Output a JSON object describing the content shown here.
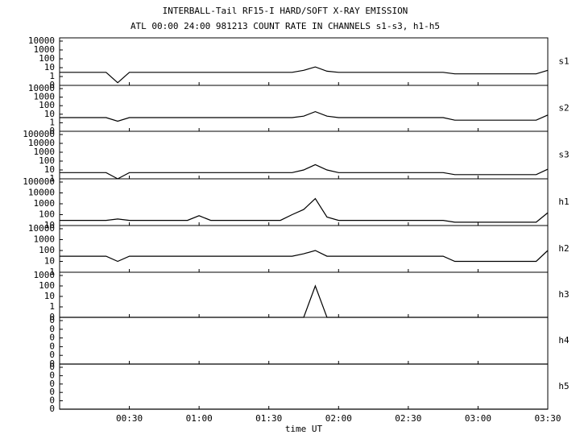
{
  "header": {
    "title": "INTERBALL-Tail RF15-I HARD/SOFT X-RAY EMISSION",
    "subtitle": "ATL 00:00 24:00 981213  COUNT RATE IN CHANNELS s1-s3, h1-h5"
  },
  "x_axis": {
    "label": "time UT",
    "xlim": [
      0,
      210
    ],
    "xticks": [
      {
        "value": 30,
        "label": "00:30"
      },
      {
        "value": 60,
        "label": "01:00"
      },
      {
        "value": 90,
        "label": "01:30"
      },
      {
        "value": 120,
        "label": "02:00"
      },
      {
        "value": 150,
        "label": "02:30"
      },
      {
        "value": 180,
        "label": "03:00"
      },
      {
        "value": 210,
        "label": "03:30"
      }
    ],
    "x": [
      0,
      5,
      10,
      15,
      20,
      25,
      30,
      35,
      40,
      45,
      50,
      55,
      60,
      65,
      70,
      75,
      80,
      85,
      90,
      95,
      100,
      105,
      110,
      115,
      120,
      125,
      130,
      135,
      140,
      145,
      150,
      155,
      160,
      165,
      170,
      175,
      180,
      185,
      190,
      195,
      200,
      205,
      210
    ]
  },
  "chart_data": [
    {
      "type": "line",
      "channel": "s1",
      "log": true,
      "ylim": [
        0.1,
        10000
      ],
      "yticks": [
        10000,
        1000,
        100,
        10,
        1,
        {
          "value": 0.1,
          "label": "0"
        }
      ],
      "series": [
        {
          "color": "#000000",
          "values": [
            3,
            3,
            3,
            3,
            3,
            0.2,
            3,
            3,
            3,
            3,
            3,
            3,
            3,
            3,
            3,
            3,
            3,
            3,
            3,
            3,
            3,
            5,
            12,
            4,
            3,
            3,
            3,
            3,
            3,
            3,
            3,
            3,
            3,
            3,
            2,
            2,
            2,
            2,
            2,
            2,
            2,
            2,
            5
          ]
        }
      ]
    },
    {
      "type": "line",
      "channel": "s2",
      "log": true,
      "ylim": [
        0.1,
        10000
      ],
      "yticks": [
        10000,
        1000,
        100,
        10,
        1,
        {
          "value": 0.1,
          "label": "0"
        }
      ],
      "series": [
        {
          "color": "#000000",
          "values": [
            4,
            4,
            4,
            4,
            4,
            1.5,
            4,
            4,
            4,
            4,
            4,
            4,
            4,
            4,
            4,
            4,
            4,
            4,
            4,
            4,
            4,
            6,
            20,
            6,
            4,
            4,
            4,
            4,
            4,
            4,
            4,
            4,
            4,
            4,
            2,
            2,
            2,
            2,
            2,
            2,
            2,
            2,
            8
          ]
        }
      ]
    },
    {
      "type": "line",
      "channel": "s3",
      "log": true,
      "ylim": [
        1,
        100000
      ],
      "yticks": [
        100000,
        10000,
        1000,
        100,
        10,
        1
      ],
      "series": [
        {
          "color": "#000000",
          "values": [
            5,
            5,
            5,
            5,
            5,
            1,
            5,
            5,
            5,
            5,
            5,
            5,
            5,
            5,
            5,
            5,
            5,
            5,
            5,
            5,
            5,
            10,
            40,
            10,
            5,
            5,
            5,
            5,
            5,
            5,
            5,
            5,
            5,
            5,
            3,
            3,
            3,
            3,
            3,
            3,
            3,
            3,
            12
          ]
        }
      ]
    },
    {
      "type": "line",
      "channel": "h1",
      "log": true,
      "ylim": [
        10,
        100000
      ],
      "yticks": [
        100000,
        10000,
        1000,
        100,
        10
      ],
      "series": [
        {
          "color": "#000000",
          "values": [
            30,
            30,
            30,
            30,
            30,
            40,
            30,
            30,
            30,
            30,
            30,
            30,
            80,
            30,
            30,
            30,
            30,
            30,
            30,
            30,
            100,
            300,
            3000,
            60,
            30,
            30,
            30,
            30,
            30,
            30,
            30,
            30,
            30,
            30,
            20,
            20,
            20,
            20,
            20,
            20,
            20,
            20,
            150
          ]
        }
      ]
    },
    {
      "type": "line",
      "channel": "h2",
      "log": true,
      "ylim": [
        1,
        10000
      ],
      "yticks": [
        10000,
        1000,
        100,
        10,
        1
      ],
      "series": [
        {
          "color": "#000000",
          "values": [
            30,
            30,
            30,
            30,
            30,
            10,
            30,
            30,
            30,
            30,
            30,
            30,
            30,
            30,
            30,
            30,
            30,
            30,
            30,
            30,
            30,
            50,
            100,
            30,
            30,
            30,
            30,
            30,
            30,
            30,
            30,
            30,
            30,
            30,
            10,
            10,
            10,
            10,
            10,
            10,
            10,
            10,
            100
          ]
        }
      ]
    },
    {
      "type": "line",
      "channel": "h3",
      "log": true,
      "ylim": [
        0.1,
        1000
      ],
      "yticks": [
        1000,
        100,
        10,
        1,
        {
          "value": 0.1,
          "label": "0"
        }
      ],
      "series": [
        {
          "color": "#000000",
          "values": [
            0.1,
            0.1,
            0.1,
            0.1,
            0.1,
            0.1,
            0.1,
            0.1,
            0.1,
            0.1,
            0.1,
            0.1,
            0.1,
            0.1,
            0.1,
            0.1,
            0.1,
            0.1,
            0.1,
            0.1,
            0.1,
            0.1,
            100,
            0.1,
            0.1,
            0.1,
            0.1,
            0.1,
            0.1,
            0.1,
            0.1,
            0.1,
            0.1,
            0.1,
            0.1,
            0.1,
            0.1,
            0.1,
            0.1,
            0.1,
            0.1,
            0.1,
            0.1
          ]
        }
      ]
    },
    {
      "type": "line",
      "channel": "h4",
      "log": true,
      "ylim": [
        1e-06,
        0.1
      ],
      "yticks": [
        {
          "value": 0.1,
          "label": "0"
        },
        {
          "value": 0.01,
          "label": "0"
        },
        {
          "value": 0.001,
          "label": "0"
        },
        {
          "value": 0.0001,
          "label": "0"
        },
        {
          "value": 1e-05,
          "label": "0"
        },
        {
          "value": 1e-06,
          "label": "0"
        }
      ],
      "series": [
        {
          "color": "#000000",
          "values": [
            1e-06,
            1e-06,
            1e-06,
            1e-06,
            1e-06,
            1e-06,
            1e-06,
            1e-06,
            1e-06,
            1e-06,
            1e-06,
            1e-06,
            1e-06,
            1e-06,
            1e-06,
            1e-06,
            1e-06,
            1e-06,
            1e-06,
            1e-06,
            1e-06,
            1e-06,
            1e-06,
            1e-06,
            1e-06,
            1e-06,
            1e-06,
            1e-06,
            1e-06,
            1e-06,
            1e-06,
            1e-06,
            1e-06,
            1e-06,
            1e-06,
            1e-06,
            1e-06,
            1e-06,
            1e-06,
            1e-06,
            1e-06,
            1e-06,
            1e-06
          ]
        }
      ]
    },
    {
      "type": "line",
      "channel": "h5",
      "log": true,
      "ylim": [
        1e-06,
        0.1
      ],
      "yticks": [
        {
          "value": 0.1,
          "label": "0"
        },
        {
          "value": 0.01,
          "label": "0"
        },
        {
          "value": 0.001,
          "label": "0"
        },
        {
          "value": 0.0001,
          "label": "0"
        },
        {
          "value": 1e-05,
          "label": "0"
        },
        {
          "value": 1e-06,
          "label": "0"
        }
      ],
      "series": [
        {
          "color": "#000000",
          "values": [
            1e-06,
            1e-06,
            1e-06,
            1e-06,
            1e-06,
            1e-06,
            1e-06,
            1e-06,
            1e-06,
            1e-06,
            1e-06,
            1e-06,
            1e-06,
            1e-06,
            1e-06,
            1e-06,
            1e-06,
            1e-06,
            1e-06,
            1e-06,
            1e-06,
            1e-06,
            1e-06,
            1e-06,
            1e-06,
            1e-06,
            1e-06,
            1e-06,
            1e-06,
            1e-06,
            1e-06,
            1e-06,
            1e-06,
            1e-06,
            1e-06,
            1e-06,
            1e-06,
            1e-06,
            1e-06,
            1e-06,
            1e-06,
            1e-06,
            1e-06
          ]
        }
      ]
    }
  ]
}
